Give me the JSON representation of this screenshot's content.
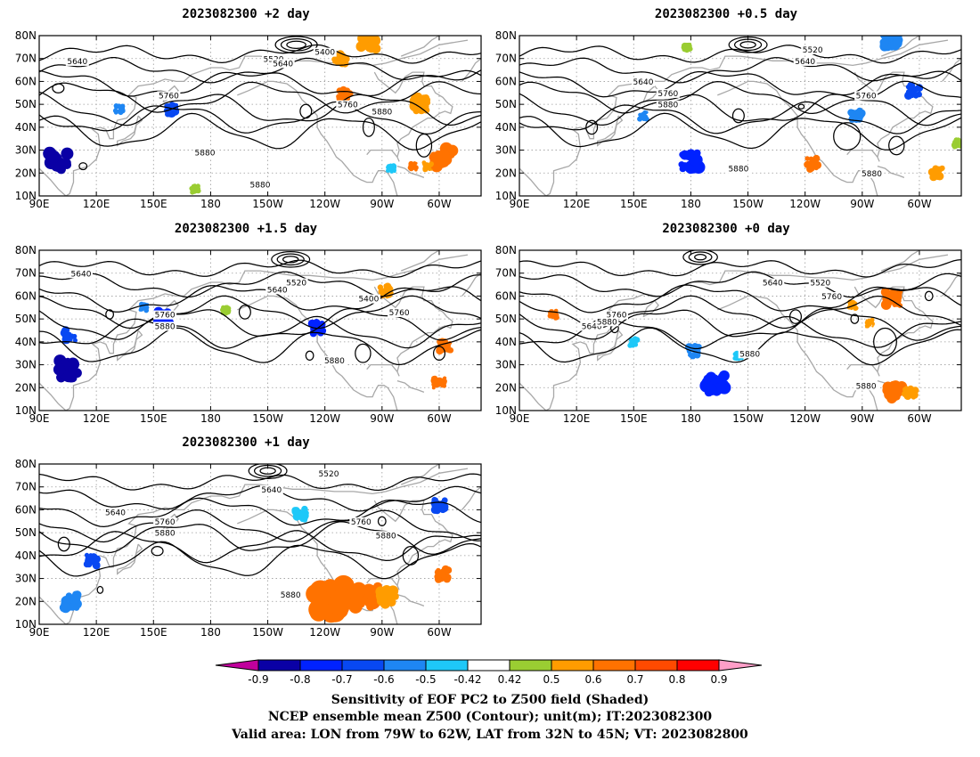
{
  "panels": [
    {
      "id": "p1",
      "title": "2023082300 +2 day"
    },
    {
      "id": "p2",
      "title": "2023082300 +0.5 day"
    },
    {
      "id": "p3",
      "title": "2023082300 +1.5 day"
    },
    {
      "id": "p4",
      "title": "2023082300 +0 day"
    },
    {
      "id": "p5",
      "title": "2023082300 +1 day"
    }
  ],
  "axes": {
    "lon_ticks": [
      "90E",
      "120E",
      "150E",
      "180",
      "150W",
      "120W",
      "90W",
      "60W"
    ],
    "lon_values": [
      90,
      120,
      150,
      180,
      210,
      240,
      270,
      300
    ],
    "lon_range": [
      90,
      322
    ],
    "lat_ticks": [
      "10N",
      "20N",
      "30N",
      "40N",
      "50N",
      "60N",
      "70N",
      "80N"
    ],
    "lat_values": [
      10,
      20,
      30,
      40,
      50,
      60,
      70,
      80
    ],
    "lat_range": [
      10,
      80
    ]
  },
  "contour_labels": [
    "5400",
    "5520",
    "5640",
    "5760",
    "5880"
  ],
  "colorbar": {
    "labels": [
      "-0.9",
      "-0.8",
      "-0.7",
      "-0.6",
      "-0.5",
      "-0.42",
      "0.42",
      "0.5",
      "0.6",
      "0.7",
      "0.8",
      "0.9"
    ],
    "colors": [
      "#0a00a5",
      "#0022ff",
      "#0848f2",
      "#1e86f3",
      "#1ec8f8",
      "#ffffff",
      "#9acd32",
      "#ff9c00",
      "#ff7200",
      "#ff4a00",
      "#ff0000"
    ],
    "low_color": "#c0009c",
    "high_color": "#ff9ec8"
  },
  "caption": {
    "line1": "Sensitivity of EOF PC2 to Z500 field (Shaded)",
    "line2": "NCEP ensemble mean Z500 (Contour); unit(m); IT:2023082300",
    "line3": "Valid area: LON from 79W to 62W, LAT from 32N to 45N; VT: 2023082800"
  },
  "style": {
    "coast_color": "#a8a8a8",
    "contour_color": "#000000",
    "grid_color": "#9a9a9a"
  }
}
